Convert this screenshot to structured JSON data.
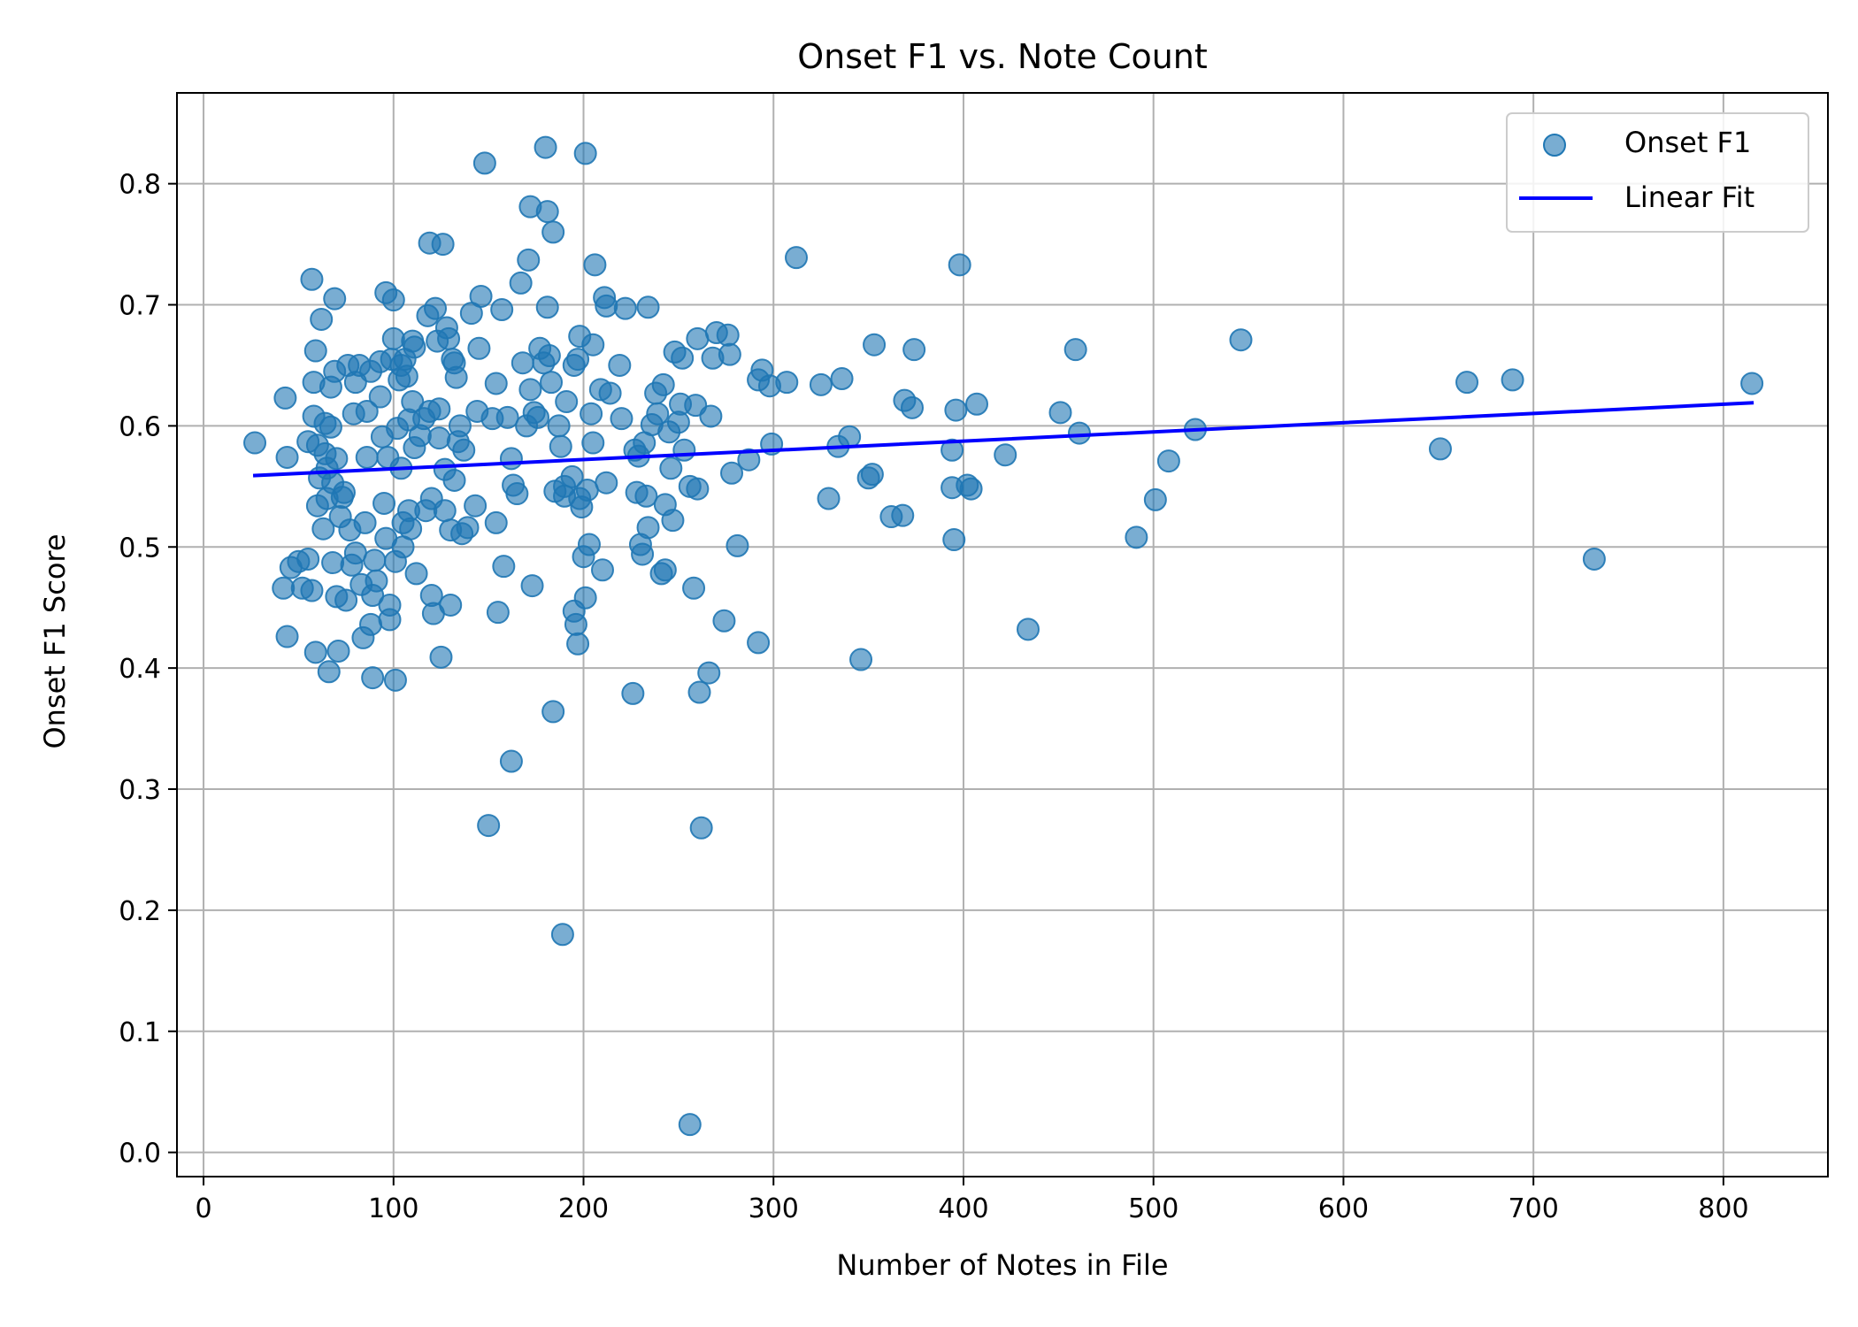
{
  "chart_data": {
    "type": "scatter",
    "title": "Onset F1 vs. Note Count",
    "xlabel": "Number of Notes in File",
    "ylabel": "Onset F1 Score",
    "xlim": [
      -14,
      855
    ],
    "ylim": [
      -0.02,
      0.875
    ],
    "xticks": [
      "0",
      "100",
      "200",
      "300",
      "400",
      "500",
      "600",
      "700",
      "800"
    ],
    "yticks": [
      "0.0",
      "0.1",
      "0.2",
      "0.3",
      "0.4",
      "0.5",
      "0.6",
      "0.7",
      "0.8"
    ],
    "grid": true,
    "legend_position": "top-right",
    "colors": {
      "points": "#1f77b4",
      "fit": "#0000ff",
      "grid": "#b0b0b0"
    },
    "series": [
      {
        "name": "Onset F1",
        "kind": "scatter",
        "points": [
          [
            27,
            0.586
          ],
          [
            43,
            0.623
          ],
          [
            44,
            0.574
          ],
          [
            42,
            0.466
          ],
          [
            44,
            0.426
          ],
          [
            46,
            0.483
          ],
          [
            50,
            0.488
          ],
          [
            52,
            0.466
          ],
          [
            55,
            0.587
          ],
          [
            55,
            0.49
          ],
          [
            57,
            0.464
          ],
          [
            57,
            0.721
          ],
          [
            58,
            0.636
          ],
          [
            58,
            0.608
          ],
          [
            59,
            0.662
          ],
          [
            59,
            0.413
          ],
          [
            60,
            0.584
          ],
          [
            60,
            0.534
          ],
          [
            61,
            0.557
          ],
          [
            62,
            0.688
          ],
          [
            63,
            0.515
          ],
          [
            64,
            0.577
          ],
          [
            64,
            0.602
          ],
          [
            65,
            0.565
          ],
          [
            65,
            0.54
          ],
          [
            66,
            0.397
          ],
          [
            67,
            0.599
          ],
          [
            67,
            0.632
          ],
          [
            68,
            0.553
          ],
          [
            68,
            0.487
          ],
          [
            69,
            0.705
          ],
          [
            69,
            0.645
          ],
          [
            70,
            0.573
          ],
          [
            70,
            0.459
          ],
          [
            71,
            0.414
          ],
          [
            72,
            0.525
          ],
          [
            73,
            0.541
          ],
          [
            74,
            0.545
          ],
          [
            75,
            0.456
          ],
          [
            76,
            0.65
          ],
          [
            77,
            0.514
          ],
          [
            78,
            0.485
          ],
          [
            79,
            0.61
          ],
          [
            80,
            0.636
          ],
          [
            80,
            0.495
          ],
          [
            82,
            0.65
          ],
          [
            83,
            0.469
          ],
          [
            84,
            0.425
          ],
          [
            85,
            0.52
          ],
          [
            86,
            0.574
          ],
          [
            86,
            0.612
          ],
          [
            88,
            0.645
          ],
          [
            88,
            0.436
          ],
          [
            89,
            0.46
          ],
          [
            89,
            0.392
          ],
          [
            90,
            0.489
          ],
          [
            91,
            0.472
          ],
          [
            93,
            0.624
          ],
          [
            93,
            0.653
          ],
          [
            94,
            0.591
          ],
          [
            95,
            0.536
          ],
          [
            96,
            0.71
          ],
          [
            96,
            0.507
          ],
          [
            97,
            0.574
          ],
          [
            98,
            0.452
          ],
          [
            98,
            0.44
          ],
          [
            99,
            0.655
          ],
          [
            100,
            0.672
          ],
          [
            100,
            0.704
          ],
          [
            101,
            0.488
          ],
          [
            101,
            0.39
          ],
          [
            102,
            0.598
          ],
          [
            103,
            0.638
          ],
          [
            104,
            0.65
          ],
          [
            104,
            0.565
          ],
          [
            105,
            0.52
          ],
          [
            105,
            0.5
          ],
          [
            106,
            0.655
          ],
          [
            107,
            0.641
          ],
          [
            108,
            0.53
          ],
          [
            108,
            0.605
          ],
          [
            109,
            0.515
          ],
          [
            110,
            0.67
          ],
          [
            110,
            0.62
          ],
          [
            111,
            0.665
          ],
          [
            111,
            0.582
          ],
          [
            112,
            0.478
          ],
          [
            114,
            0.592
          ],
          [
            116,
            0.606
          ],
          [
            117,
            0.53
          ],
          [
            118,
            0.691
          ],
          [
            119,
            0.751
          ],
          [
            119,
            0.612
          ],
          [
            120,
            0.54
          ],
          [
            120,
            0.46
          ],
          [
            121,
            0.445
          ],
          [
            122,
            0.697
          ],
          [
            123,
            0.67
          ],
          [
            124,
            0.59
          ],
          [
            124,
            0.614
          ],
          [
            125,
            0.409
          ],
          [
            126,
            0.75
          ],
          [
            127,
            0.564
          ],
          [
            127,
            0.53
          ],
          [
            128,
            0.681
          ],
          [
            129,
            0.672
          ],
          [
            130,
            0.514
          ],
          [
            130,
            0.452
          ],
          [
            131,
            0.655
          ],
          [
            132,
            0.652
          ],
          [
            132,
            0.555
          ],
          [
            133,
            0.64
          ],
          [
            134,
            0.587
          ],
          [
            135,
            0.6
          ],
          [
            136,
            0.511
          ],
          [
            137,
            0.58
          ],
          [
            139,
            0.516
          ],
          [
            141,
            0.693
          ],
          [
            143,
            0.534
          ],
          [
            144,
            0.612
          ],
          [
            145,
            0.664
          ],
          [
            146,
            0.707
          ],
          [
            148,
            0.817
          ],
          [
            150,
            0.27
          ],
          [
            152,
            0.606
          ],
          [
            154,
            0.635
          ],
          [
            154,
            0.52
          ],
          [
            155,
            0.446
          ],
          [
            157,
            0.696
          ],
          [
            158,
            0.484
          ],
          [
            160,
            0.607
          ],
          [
            162,
            0.323
          ],
          [
            162,
            0.573
          ],
          [
            163,
            0.551
          ],
          [
            165,
            0.544
          ],
          [
            167,
            0.718
          ],
          [
            168,
            0.652
          ],
          [
            170,
            0.6
          ],
          [
            171,
            0.737
          ],
          [
            172,
            0.781
          ],
          [
            172,
            0.63
          ],
          [
            173,
            0.468
          ],
          [
            174,
            0.611
          ],
          [
            176,
            0.607
          ],
          [
            177,
            0.664
          ],
          [
            179,
            0.652
          ],
          [
            180,
            0.83
          ],
          [
            181,
            0.777
          ],
          [
            181,
            0.698
          ],
          [
            182,
            0.658
          ],
          [
            183,
            0.636
          ],
          [
            184,
            0.76
          ],
          [
            184,
            0.364
          ],
          [
            185,
            0.546
          ],
          [
            187,
            0.6
          ],
          [
            188,
            0.583
          ],
          [
            189,
            0.18
          ],
          [
            190,
            0.55
          ],
          [
            190,
            0.542
          ],
          [
            191,
            0.62
          ],
          [
            194,
            0.558
          ],
          [
            195,
            0.65
          ],
          [
            195,
            0.447
          ],
          [
            196,
            0.436
          ],
          [
            197,
            0.42
          ],
          [
            197,
            0.655
          ],
          [
            198,
            0.674
          ],
          [
            198,
            0.54
          ],
          [
            199,
            0.533
          ],
          [
            200,
            0.492
          ],
          [
            201,
            0.825
          ],
          [
            201,
            0.458
          ],
          [
            202,
            0.547
          ],
          [
            203,
            0.502
          ],
          [
            204,
            0.61
          ],
          [
            205,
            0.667
          ],
          [
            205,
            0.586
          ],
          [
            206,
            0.733
          ],
          [
            209,
            0.63
          ],
          [
            210,
            0.481
          ],
          [
            211,
            0.706
          ],
          [
            212,
            0.699
          ],
          [
            212,
            0.553
          ],
          [
            214,
            0.627
          ],
          [
            219,
            0.65
          ],
          [
            220,
            0.606
          ],
          [
            222,
            0.697
          ],
          [
            226,
            0.379
          ],
          [
            227,
            0.58
          ],
          [
            228,
            0.545
          ],
          [
            229,
            0.575
          ],
          [
            230,
            0.502
          ],
          [
            231,
            0.494
          ],
          [
            232,
            0.586
          ],
          [
            233,
            0.542
          ],
          [
            234,
            0.698
          ],
          [
            234,
            0.516
          ],
          [
            236,
            0.601
          ],
          [
            238,
            0.627
          ],
          [
            239,
            0.61
          ],
          [
            241,
            0.478
          ],
          [
            242,
            0.634
          ],
          [
            243,
            0.481
          ],
          [
            243,
            0.535
          ],
          [
            245,
            0.595
          ],
          [
            246,
            0.565
          ],
          [
            247,
            0.522
          ],
          [
            248,
            0.661
          ],
          [
            250,
            0.603
          ],
          [
            251,
            0.618
          ],
          [
            252,
            0.656
          ],
          [
            253,
            0.58
          ],
          [
            256,
            0.023
          ],
          [
            256,
            0.55
          ],
          [
            258,
            0.466
          ],
          [
            259,
            0.617
          ],
          [
            260,
            0.548
          ],
          [
            260,
            0.672
          ],
          [
            261,
            0.38
          ],
          [
            262,
            0.268
          ],
          [
            266,
            0.396
          ],
          [
            267,
            0.608
          ],
          [
            268,
            0.656
          ],
          [
            270,
            0.677
          ],
          [
            274,
            0.439
          ],
          [
            276,
            0.675
          ],
          [
            277,
            0.659
          ],
          [
            278,
            0.561
          ],
          [
            281,
            0.501
          ],
          [
            287,
            0.572
          ],
          [
            292,
            0.421
          ],
          [
            292,
            0.638
          ],
          [
            294,
            0.646
          ],
          [
            298,
            0.633
          ],
          [
            299,
            0.585
          ],
          [
            307,
            0.636
          ],
          [
            312,
            0.739
          ],
          [
            325,
            0.634
          ],
          [
            329,
            0.54
          ],
          [
            334,
            0.583
          ],
          [
            336,
            0.639
          ],
          [
            340,
            0.591
          ],
          [
            346,
            0.407
          ],
          [
            350,
            0.557
          ],
          [
            352,
            0.56
          ],
          [
            353,
            0.667
          ],
          [
            362,
            0.525
          ],
          [
            368,
            0.526
          ],
          [
            369,
            0.621
          ],
          [
            373,
            0.615
          ],
          [
            374,
            0.663
          ],
          [
            394,
            0.58
          ],
          [
            394,
            0.549
          ],
          [
            395,
            0.506
          ],
          [
            396,
            0.613
          ],
          [
            398,
            0.733
          ],
          [
            402,
            0.551
          ],
          [
            404,
            0.548
          ],
          [
            407,
            0.618
          ],
          [
            422,
            0.576
          ],
          [
            434,
            0.432
          ],
          [
            451,
            0.611
          ],
          [
            459,
            0.663
          ],
          [
            461,
            0.594
          ],
          [
            491,
            0.508
          ],
          [
            501,
            0.539
          ],
          [
            508,
            0.571
          ],
          [
            522,
            0.597
          ],
          [
            546,
            0.671
          ],
          [
            651,
            0.581
          ],
          [
            665,
            0.636
          ],
          [
            689,
            0.638
          ],
          [
            732,
            0.49
          ],
          [
            815,
            0.635
          ]
        ]
      },
      {
        "name": "Linear Fit",
        "kind": "line",
        "points": [
          [
            27,
            0.559
          ],
          [
            815,
            0.619
          ]
        ]
      }
    ]
  }
}
